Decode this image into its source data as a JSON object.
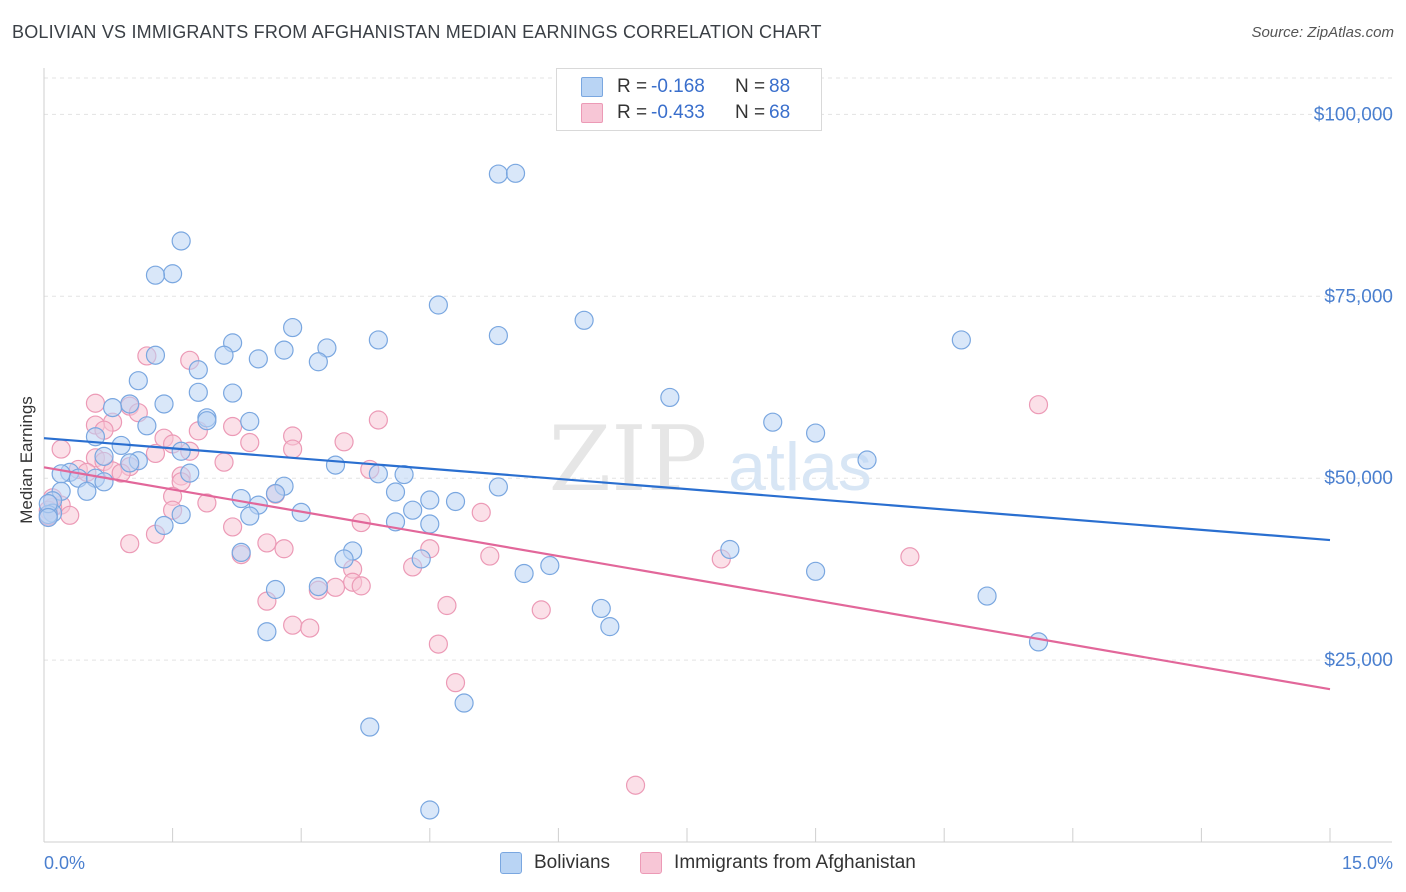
{
  "title": "BOLIVIAN VS IMMIGRANTS FROM AFGHANISTAN MEDIAN EARNINGS CORRELATION CHART",
  "source": "Source: ZipAtlas.com",
  "watermark": {
    "zip": "ZIP",
    "atlas": "atlas"
  },
  "colors": {
    "blue_fill": "#b9d4f4",
    "blue_stroke": "#7aa7e0",
    "blue_line": "#2a6fd0",
    "pink_fill": "#f7c6d6",
    "pink_stroke": "#ec9ab6",
    "pink_line": "#e2679a",
    "axis_label": "#4a7fcf",
    "grid": "#e3e3e3"
  },
  "legend": {
    "rows": [
      {
        "r_label": "R =",
        "r_value": "-0.168",
        "n_label": "N =",
        "n_value": "88"
      },
      {
        "r_label": "R =",
        "r_value": "-0.433",
        "n_label": "N =",
        "n_value": "68"
      }
    ]
  },
  "bottom_legend": {
    "bolivians": "Bolivians",
    "afghanistan": "Immigrants from Afghanistan"
  },
  "chart_data": {
    "type": "scatter",
    "title": "BOLIVIAN VS IMMIGRANTS FROM AFGHANISTAN MEDIAN EARNINGS CORRELATION CHART",
    "xlabel": "",
    "ylabel": "Median Earnings",
    "xlim": [
      0,
      15
    ],
    "ylim": [
      0,
      105000
    ],
    "x_tick_labels": [
      "0.0%",
      "15.0%"
    ],
    "y_ticks": [
      25000,
      50000,
      75000,
      100000
    ],
    "y_tick_labels": [
      "$25,000",
      "$50,000",
      "$75,000",
      "$100,000"
    ],
    "series": [
      {
        "name": "Bolivians",
        "trend": {
          "x": [
            0,
            15
          ],
          "y": [
            55500,
            41500
          ]
        },
        "points": [
          [
            5.3,
            91800
          ],
          [
            5.5,
            91900
          ],
          [
            1.6,
            82600
          ],
          [
            1.5,
            78100
          ],
          [
            1.3,
            77900
          ],
          [
            4.6,
            73800
          ],
          [
            6.3,
            71700
          ],
          [
            2.9,
            70700
          ],
          [
            5.3,
            69600
          ],
          [
            3.9,
            69000
          ],
          [
            10.7,
            69000
          ],
          [
            2.2,
            68600
          ],
          [
            3.3,
            67900
          ],
          [
            2.8,
            67600
          ],
          [
            1.3,
            66900
          ],
          [
            2.1,
            66900
          ],
          [
            2.5,
            66400
          ],
          [
            3.2,
            66000
          ],
          [
            1.8,
            64900
          ],
          [
            1.1,
            63400
          ],
          [
            1.8,
            61800
          ],
          [
            2.2,
            61700
          ],
          [
            7.3,
            61100
          ],
          [
            1.4,
            60200
          ],
          [
            1.0,
            60200
          ],
          [
            0.8,
            59700
          ],
          [
            1.9,
            58300
          ],
          [
            1.9,
            57900
          ],
          [
            2.4,
            57800
          ],
          [
            8.5,
            57700
          ],
          [
            1.2,
            57200
          ],
          [
            9.0,
            56200
          ],
          [
            0.6,
            55700
          ],
          [
            0.9,
            54500
          ],
          [
            1.6,
            53700
          ],
          [
            0.7,
            53000
          ],
          [
            1.1,
            52400
          ],
          [
            1.0,
            52100
          ],
          [
            9.6,
            52500
          ],
          [
            3.4,
            51800
          ],
          [
            0.3,
            50800
          ],
          [
            1.7,
            50700
          ],
          [
            0.2,
            50600
          ],
          [
            3.9,
            50600
          ],
          [
            4.2,
            50500
          ],
          [
            0.4,
            50000
          ],
          [
            0.6,
            50000
          ],
          [
            0.7,
            49500
          ],
          [
            2.8,
            48900
          ],
          [
            5.3,
            48800
          ],
          [
            0.2,
            48200
          ],
          [
            0.5,
            48200
          ],
          [
            4.1,
            48100
          ],
          [
            2.7,
            47900
          ],
          [
            4.5,
            47000
          ],
          [
            4.8,
            46800
          ],
          [
            2.3,
            47200
          ],
          [
            2.5,
            46300
          ],
          [
            0.1,
            46900
          ],
          [
            0.1,
            45200
          ],
          [
            4.3,
            45600
          ],
          [
            3.0,
            45300
          ],
          [
            1.6,
            45000
          ],
          [
            2.4,
            44800
          ],
          [
            4.1,
            44000
          ],
          [
            4.5,
            43700
          ],
          [
            1.4,
            43500
          ],
          [
            8.0,
            40200
          ],
          [
            3.6,
            40000
          ],
          [
            2.3,
            39800
          ],
          [
            3.5,
            38900
          ],
          [
            4.4,
            38900
          ],
          [
            5.9,
            38000
          ],
          [
            9.0,
            37200
          ],
          [
            5.6,
            36900
          ],
          [
            2.7,
            34700
          ],
          [
            3.2,
            35100
          ],
          [
            11.0,
            33800
          ],
          [
            6.5,
            32100
          ],
          [
            6.6,
            29600
          ],
          [
            2.6,
            28900
          ],
          [
            11.6,
            27500
          ],
          [
            4.9,
            19100
          ],
          [
            3.8,
            15800
          ],
          [
            4.5,
            4400
          ],
          [
            0.05,
            45000
          ],
          [
            0.05,
            46500
          ],
          [
            0.05,
            44600
          ]
        ]
      },
      {
        "name": "Immigrants from Afghanistan",
        "trend": {
          "x": [
            0,
            15
          ],
          "y": [
            51500,
            21000
          ]
        },
        "points": [
          [
            1.2,
            66800
          ],
          [
            1.7,
            66200
          ],
          [
            0.6,
            60300
          ],
          [
            11.6,
            60100
          ],
          [
            1.0,
            59900
          ],
          [
            1.1,
            59000
          ],
          [
            3.9,
            58000
          ],
          [
            0.8,
            57700
          ],
          [
            0.6,
            57300
          ],
          [
            0.7,
            56600
          ],
          [
            1.8,
            56500
          ],
          [
            2.2,
            57100
          ],
          [
            2.9,
            55800
          ],
          [
            1.4,
            55500
          ],
          [
            3.5,
            55000
          ],
          [
            1.5,
            54700
          ],
          [
            0.2,
            54000
          ],
          [
            2.4,
            54900
          ],
          [
            1.7,
            53700
          ],
          [
            1.3,
            53400
          ],
          [
            2.9,
            54000
          ],
          [
            0.6,
            52800
          ],
          [
            0.7,
            52300
          ],
          [
            2.1,
            52200
          ],
          [
            3.8,
            51200
          ],
          [
            1.0,
            51600
          ],
          [
            0.4,
            51200
          ],
          [
            0.5,
            50800
          ],
          [
            0.8,
            51000
          ],
          [
            0.9,
            50700
          ],
          [
            1.6,
            50300
          ],
          [
            1.6,
            49500
          ],
          [
            2.7,
            47800
          ],
          [
            1.5,
            47500
          ],
          [
            1.9,
            46600
          ],
          [
            0.2,
            46300
          ],
          [
            0.1,
            46000
          ],
          [
            1.5,
            45600
          ],
          [
            0.3,
            44900
          ],
          [
            5.1,
            45300
          ],
          [
            3.7,
            43900
          ],
          [
            2.2,
            43300
          ],
          [
            1.3,
            42300
          ],
          [
            2.6,
            41100
          ],
          [
            1.0,
            41000
          ],
          [
            2.8,
            40300
          ],
          [
            4.5,
            40300
          ],
          [
            2.3,
            39500
          ],
          [
            5.2,
            39300
          ],
          [
            7.9,
            38900
          ],
          [
            10.1,
            39200
          ],
          [
            4.3,
            37800
          ],
          [
            3.6,
            37500
          ],
          [
            3.6,
            35700
          ],
          [
            3.4,
            35000
          ],
          [
            3.7,
            35200
          ],
          [
            3.2,
            34600
          ],
          [
            2.6,
            33100
          ],
          [
            4.7,
            32500
          ],
          [
            5.8,
            31900
          ],
          [
            2.9,
            29800
          ],
          [
            3.1,
            29400
          ],
          [
            4.6,
            27200
          ],
          [
            4.8,
            21900
          ],
          [
            6.9,
            7800
          ],
          [
            0.1,
            47300
          ],
          [
            0.05,
            45600
          ],
          [
            0.05,
            44800
          ]
        ]
      }
    ]
  }
}
